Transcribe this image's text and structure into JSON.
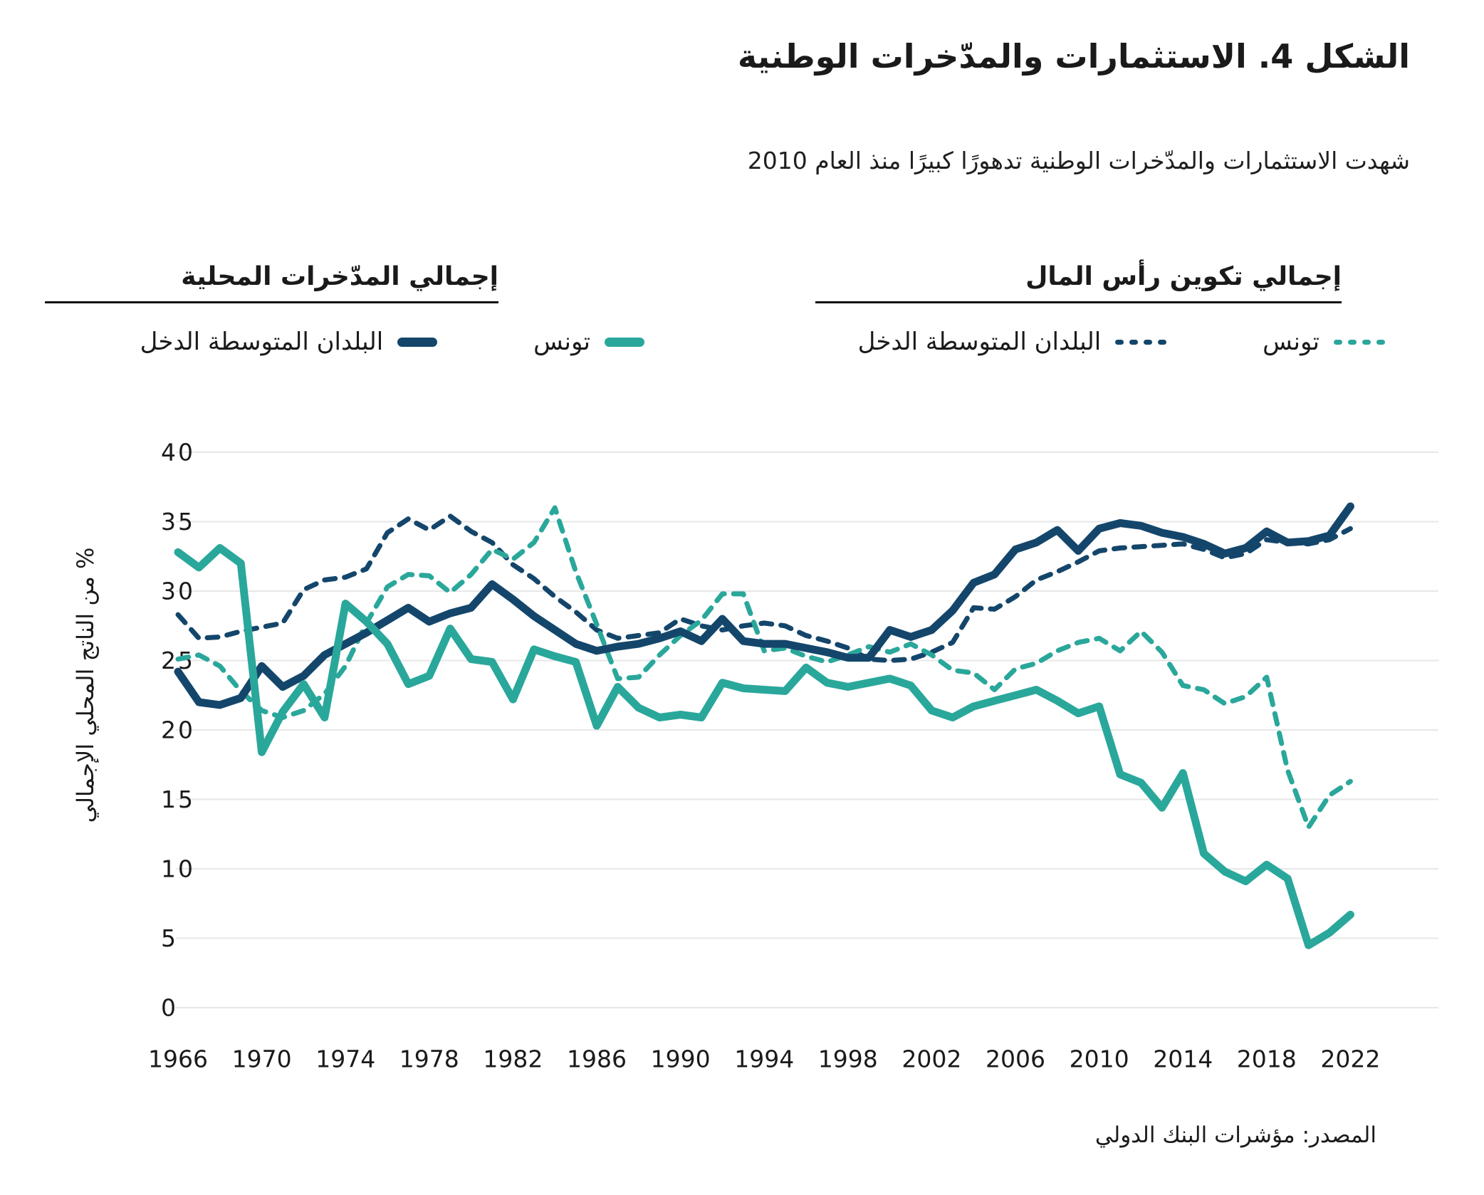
{
  "figure": {
    "title": "الشكل 4. الاستثمارات والمدّخرات الوطنية",
    "subtitle": "شهدت الاستثمارات والمدّخرات الوطنية تدهورًا كبيرًا منذ العام 2010",
    "source": "المصدر: مؤشرات البنك الدولي"
  },
  "colors": {
    "teal": "#2aa79b",
    "navy": "#14466b",
    "grid": "#e7e7e7",
    "text": "#1a1a1a"
  },
  "legend": {
    "savings_group": {
      "title": "إجمالي المدّخرات المحلية",
      "items": [
        {
          "label": "تونس",
          "style": "solid",
          "color": "#2aa79b"
        },
        {
          "label": "البلدان المتوسطة الدخل",
          "style": "solid",
          "color": "#14466b"
        }
      ]
    },
    "gcf_group": {
      "title": "إجمالي تكوين رأس المال",
      "items": [
        {
          "label": "تونس",
          "style": "dashed",
          "color": "#2aa79b"
        },
        {
          "label": "البلدان المتوسطة الدخل",
          "style": "dashed",
          "color": "#14466b"
        }
      ]
    }
  },
  "chart_data": {
    "type": "line",
    "title": "الشكل 4. الاستثمارات والمدّخرات الوطنية",
    "xlabel": "",
    "ylabel": "% من الناتج المحلي الإجمالي",
    "ylim": [
      0,
      40
    ],
    "yticks": [
      0,
      5,
      10,
      15,
      20,
      25,
      30,
      35,
      40
    ],
    "grid": true,
    "legend_position": "top",
    "x": [
      1966,
      1967,
      1968,
      1969,
      1970,
      1971,
      1972,
      1973,
      1974,
      1975,
      1976,
      1977,
      1978,
      1979,
      1980,
      1981,
      1982,
      1983,
      1984,
      1985,
      1986,
      1987,
      1988,
      1989,
      1990,
      1991,
      1992,
      1993,
      1994,
      1995,
      1996,
      1997,
      1998,
      1999,
      2000,
      2001,
      2002,
      2003,
      2004,
      2005,
      2006,
      2007,
      2008,
      2009,
      2010,
      2011,
      2012,
      2013,
      2014,
      2015,
      2016,
      2017,
      2018,
      2019,
      2020,
      2021,
      2022
    ],
    "x_tick_labels": [
      1966,
      1970,
      1974,
      1978,
      1982,
      1986,
      1990,
      1994,
      1998,
      2002,
      2006,
      2010,
      2014,
      2018,
      2022
    ],
    "series": [
      {
        "key": "middle-income-capital-formation",
        "name": "البلدان المتوسطة الدخل — إجمالي تكوين رأس المال",
        "color": "#14466b",
        "dash": true,
        "values": [
          28.3,
          26.6,
          26.7,
          27.1,
          27.4,
          27.7,
          30.1,
          30.8,
          31.0,
          31.6,
          34.2,
          35.2,
          34.4,
          35.4,
          34.3,
          33.5,
          31.9,
          30.9,
          29.6,
          28.5,
          27.2,
          26.6,
          26.8,
          27.0,
          28.0,
          27.5,
          27.2,
          27.5,
          27.7,
          27.5,
          26.8,
          26.4,
          25.9,
          25.1,
          25.0,
          25.1,
          25.6,
          26.3,
          28.8,
          28.7,
          29.6,
          30.8,
          31.4,
          32.1,
          32.9,
          33.1,
          33.2,
          33.3,
          33.4,
          33.0,
          32.4,
          32.7,
          33.7,
          33.5,
          33.4,
          33.7,
          34.5
        ]
      },
      {
        "key": "tunisia-capital-formation",
        "name": "تونس — إجمالي تكوين رأس المال",
        "color": "#2aa79b",
        "dash": true,
        "values": [
          25.1,
          25.4,
          24.6,
          22.8,
          21.4,
          20.9,
          21.4,
          22.6,
          24.6,
          27.7,
          30.3,
          31.2,
          31.1,
          29.9,
          31.2,
          33.0,
          32.3,
          33.5,
          36.0,
          31.4,
          27.6,
          23.7,
          23.8,
          25.4,
          26.8,
          27.9,
          29.8,
          29.8,
          25.7,
          25.9,
          25.3,
          24.9,
          25.4,
          26.0,
          25.6,
          26.2,
          25.4,
          24.3,
          24.1,
          22.9,
          24.4,
          24.8,
          25.7,
          26.3,
          26.6,
          25.7,
          27.1,
          25.6,
          23.2,
          22.9,
          21.9,
          22.4,
          23.8,
          17.1,
          13.0,
          15.3,
          16.3
        ]
      },
      {
        "key": "middle-income-savings",
        "name": "البلدان المتوسطة الدخل — إجمالي المدّخرات المحلية",
        "color": "#14466b",
        "dash": false,
        "values": [
          24.2,
          22.0,
          21.8,
          22.3,
          24.6,
          23.1,
          23.9,
          25.4,
          26.2,
          27.0,
          27.9,
          28.8,
          27.8,
          28.4,
          28.8,
          30.5,
          29.4,
          28.2,
          27.2,
          26.2,
          25.7,
          26.0,
          26.2,
          26.6,
          27.1,
          26.4,
          28.0,
          26.4,
          26.2,
          26.2,
          25.9,
          25.6,
          25.2,
          25.2,
          27.2,
          26.7,
          27.2,
          28.6,
          30.6,
          31.2,
          33.0,
          33.5,
          34.4,
          32.9,
          34.5,
          34.9,
          34.7,
          34.2,
          33.9,
          33.4,
          32.7,
          33.1,
          34.3,
          33.5,
          33.6,
          34.0,
          36.1
        ]
      },
      {
        "key": "tunisia-savings",
        "name": "تونس — إجمالي المدّخرات المحلية",
        "color": "#2aa79b",
        "dash": false,
        "values": [
          32.8,
          31.7,
          33.1,
          32.0,
          18.4,
          21.3,
          23.3,
          20.9,
          29.1,
          27.8,
          26.2,
          23.3,
          23.9,
          27.3,
          25.1,
          24.9,
          22.2,
          25.8,
          25.3,
          24.9,
          20.3,
          23.1,
          21.6,
          20.9,
          21.1,
          20.9,
          23.4,
          23.0,
          22.9,
          22.8,
          24.5,
          23.4,
          23.1,
          23.4,
          23.7,
          23.2,
          21.4,
          20.9,
          21.7,
          22.1,
          22.5,
          22.9,
          22.1,
          21.2,
          21.7,
          16.8,
          16.2,
          14.4,
          16.9,
          11.1,
          9.8,
          9.1,
          10.3,
          9.3,
          4.5,
          5.4,
          6.7
        ]
      }
    ]
  }
}
